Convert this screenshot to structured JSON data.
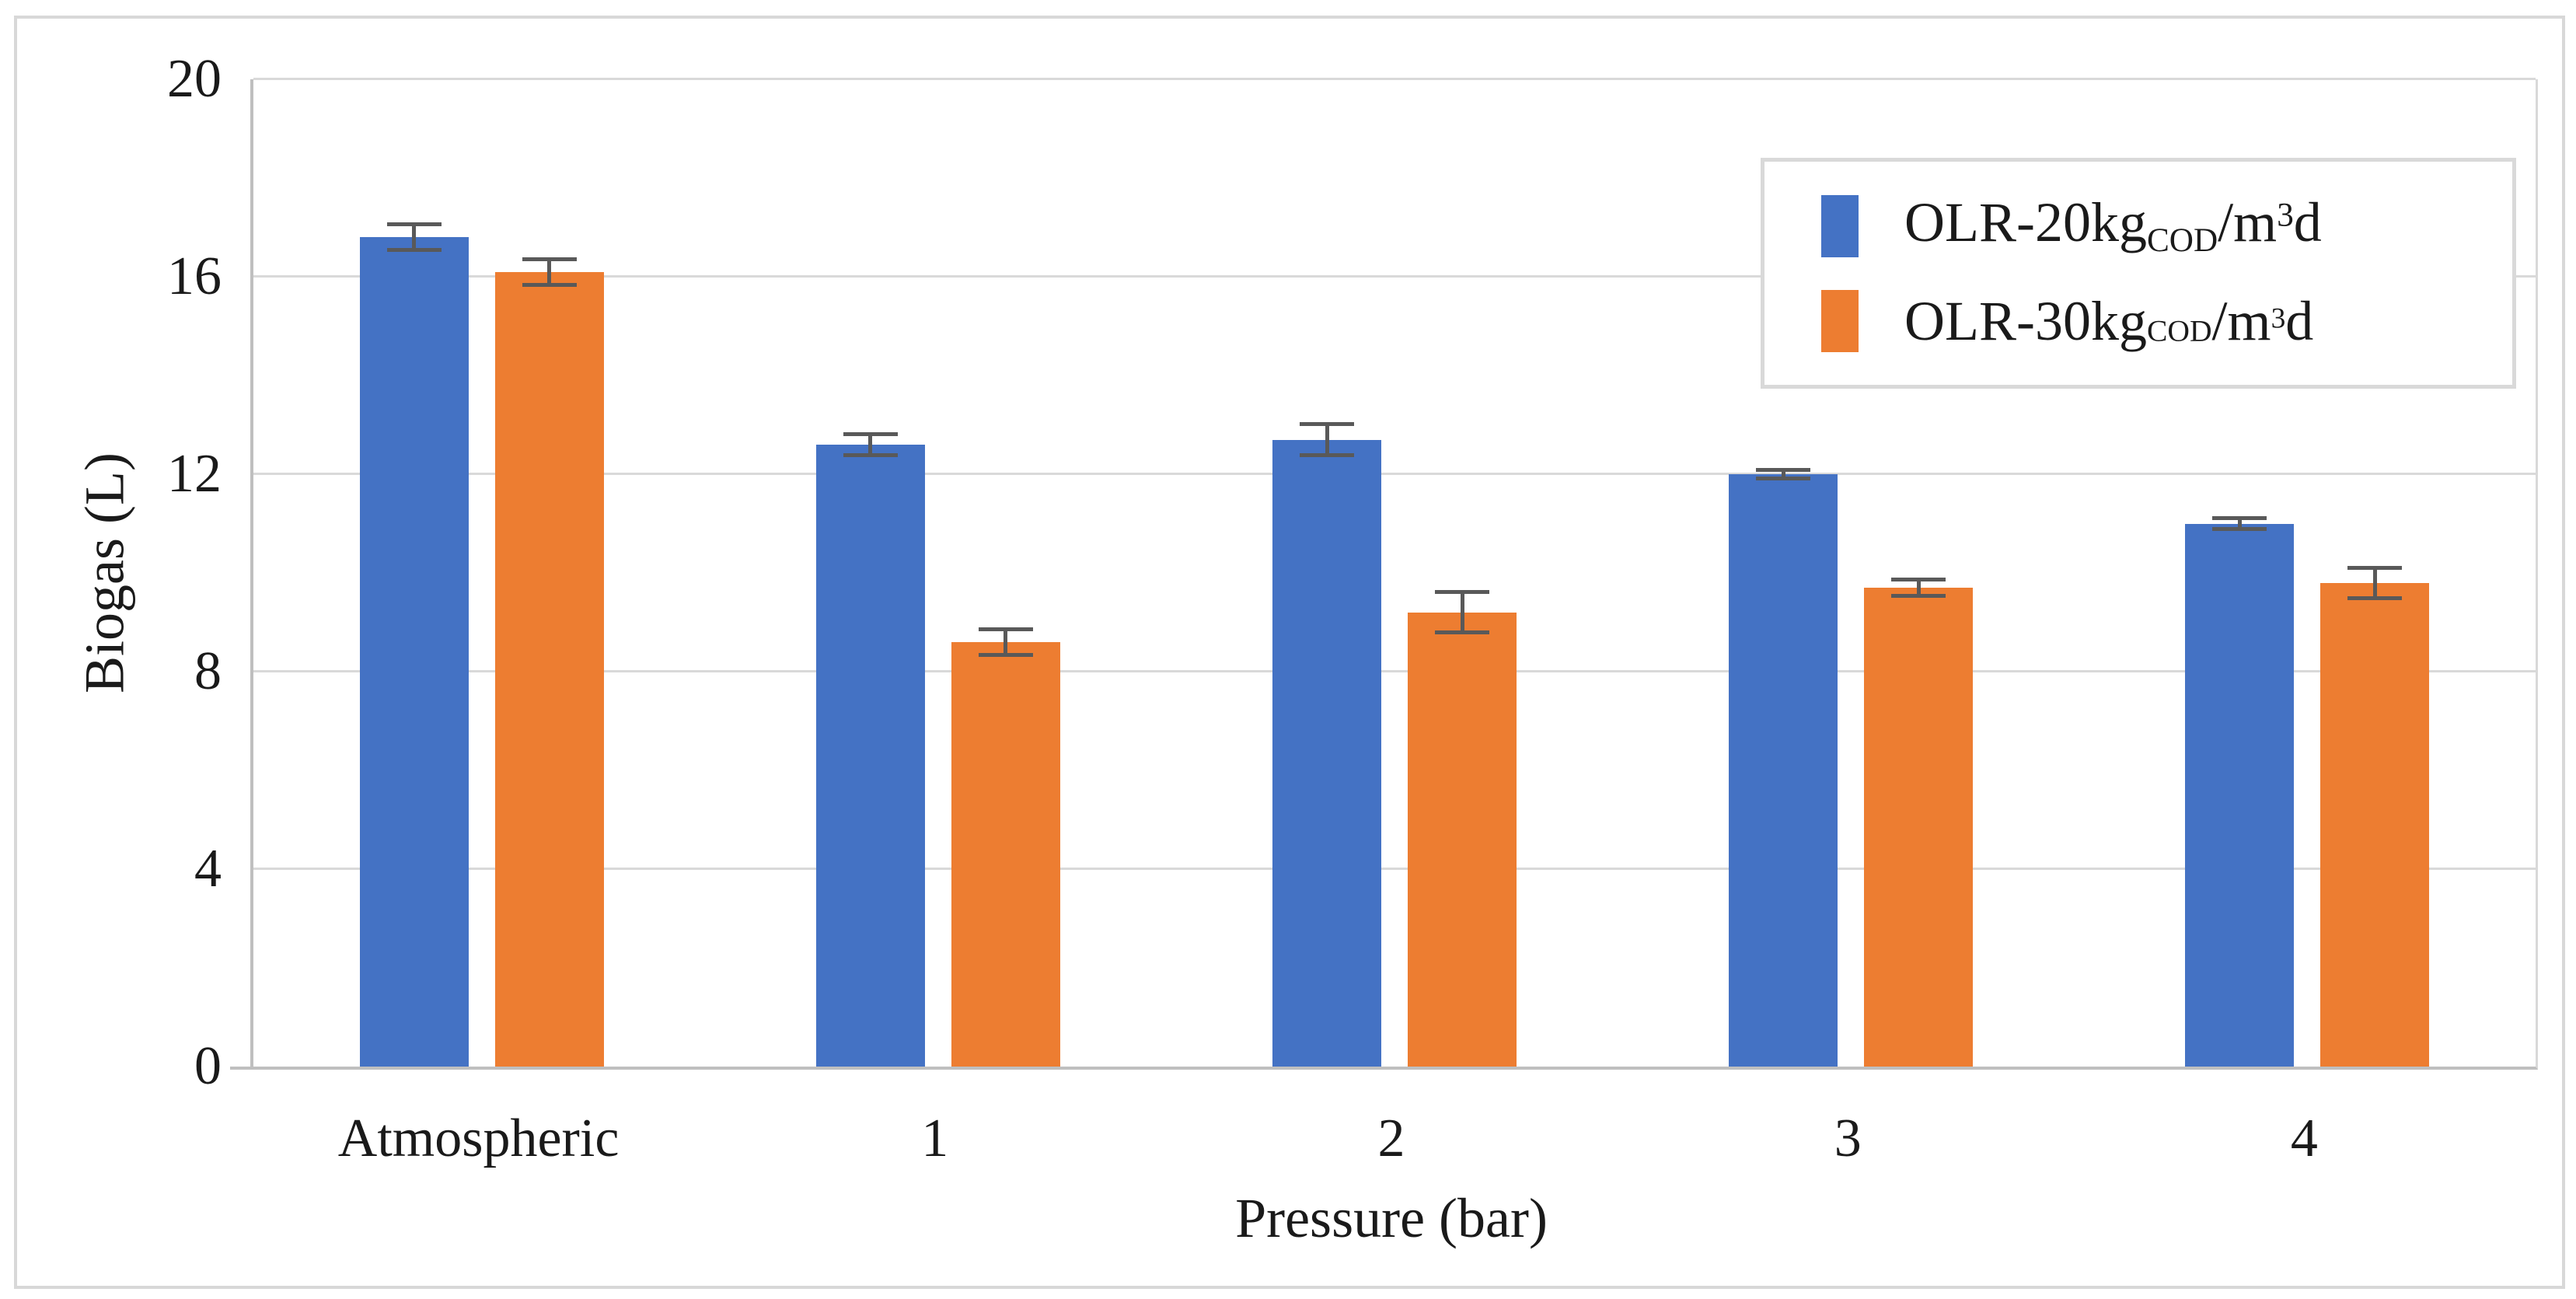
{
  "chart_data": {
    "type": "bar",
    "title": "",
    "categories": [
      "Atmospheric",
      "1",
      "2",
      "3",
      "4"
    ],
    "series": [
      {
        "name": "OLR-20kgCOD/m3d",
        "label_parts": {
          "pre": "OLR-20kg",
          "sub": "COD",
          "mid": "/m",
          "sup": "3",
          "suf": "d"
        },
        "color": "#4472C4",
        "values": [
          16.8,
          12.6,
          12.7,
          12.0,
          11.0
        ],
        "errors": [
          0.3,
          0.25,
          0.35,
          0.12,
          0.15
        ]
      },
      {
        "name": "OLR-30kgCOD/m3d",
        "label_parts": {
          "pre": "OLR-30kg",
          "sub": "COD",
          "mid": "/m",
          "sup": "3",
          "suf": "d"
        },
        "color": "#ED7D31",
        "values": [
          16.1,
          8.6,
          9.2,
          9.7,
          9.8
        ],
        "errors": [
          0.3,
          0.3,
          0.45,
          0.2,
          0.35
        ]
      }
    ],
    "xlabel": "Pressure (bar)",
    "ylabel": "Biogas (L)",
    "ylim": [
      0,
      20
    ],
    "yticks": [
      0,
      4,
      8,
      12,
      16,
      20
    ],
    "grid": "horizontal",
    "legend_position": "top-right",
    "error_bar_color": "#595959",
    "gridline_color": "#D9D9D9",
    "axis_line_color": "#BFBFBF",
    "frame_color": "#D8D8D8"
  }
}
